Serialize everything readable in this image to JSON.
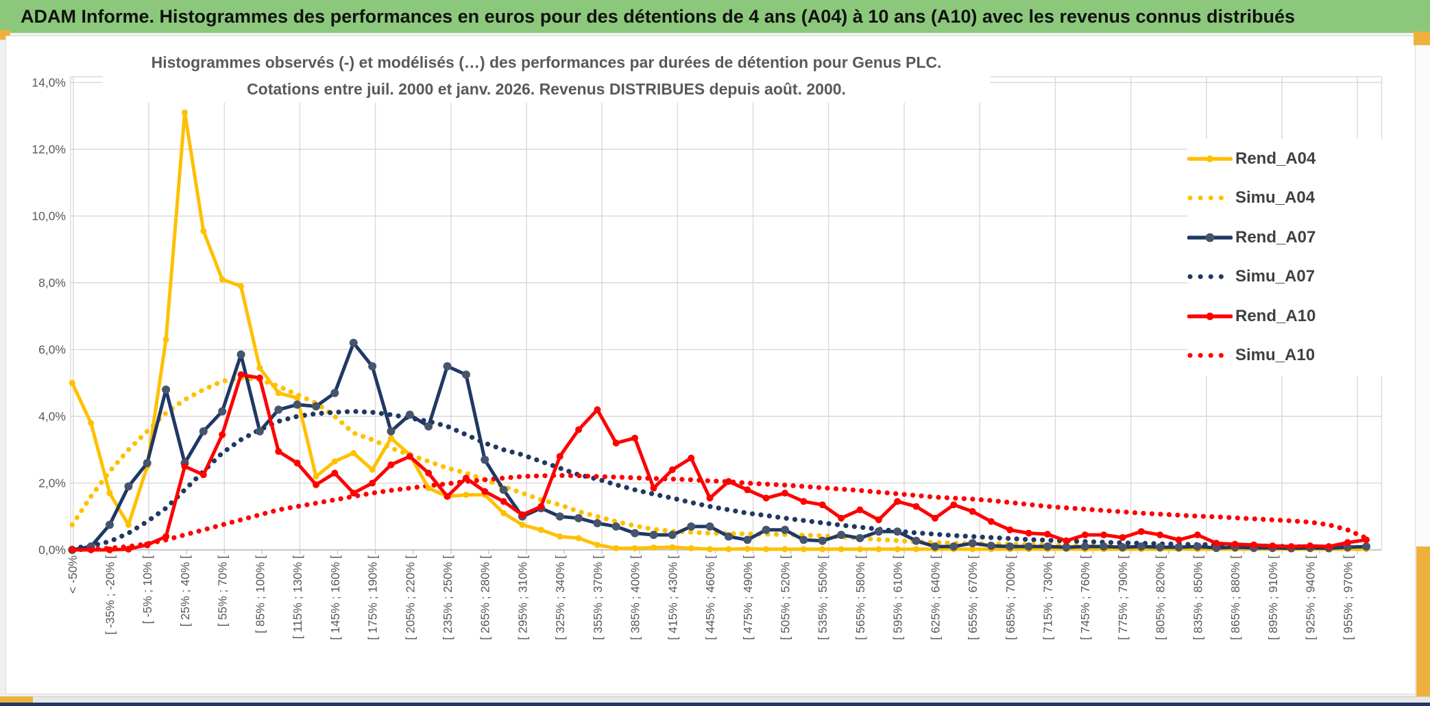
{
  "header": {
    "title": "ADAM Informe. Histogrammes des performances en euros pour des détentions de 4 ans (A04) à 10 ans (A10) avec les revenus connus distribués"
  },
  "colors": {
    "header_green": "#8bc87c",
    "frame_yellow": "#efb13d",
    "window_bar_navy": "#1f3864",
    "grid": "#d9d9d9",
    "axis_line": "#bfbfbf",
    "axis_text": "#595959",
    "legend_text": "#404040",
    "series_yellow": "#ffc000",
    "series_navy": "#203864",
    "series_navy_marker": "#47546e",
    "series_red": "#ff0000"
  },
  "chart_data": {
    "type": "line",
    "title_line1": "Histogrammes observés (-) et modélisés (…) des performances par durées de détention pour Genus PLC.",
    "title_line2": "Cotations entre juil. 2000 et janv. 2026. Revenus DISTRIBUES depuis août. 2000.",
    "ylabel": "",
    "xlabel": "",
    "ylim": [
      0,
      14
    ],
    "ytick_step_pct": 2,
    "grid": true,
    "legend_position": "right",
    "y_tick_labels": [
      "0,0%",
      "2,0%",
      "4,0%",
      "6,0%",
      "8,0%",
      "10,0%",
      "12,0%",
      "14,0%"
    ],
    "categories": [
      "< -50%",
      "[ -35% ; -20% [",
      "[ -5% ; 10% [",
      "[ 25% ; 40% [",
      "[ 55% ; 70% [",
      "[ 85% ; 100% [",
      "[ 115% ; 130% [",
      "[ 145% ; 160% [",
      "[ 175% ; 190% [",
      "[ 205% ; 220% [",
      "[ 235% ; 250% [",
      "[ 265% ; 280% [",
      "[ 295% ; 310% [",
      "[ 325% ; 340% [",
      "[ 355% ; 370% [",
      "[ 385% ; 400% [",
      "[ 415% ; 430% [",
      "[ 445% ; 460% [",
      "[ 475% ; 490% [",
      "[ 505% ; 520% [",
      "[ 535% ; 550% [",
      "[ 565% ; 580% [",
      "[ 595% ; 610% [",
      "[ 625% ; 640% [",
      "[ 655% ; 670% [",
      "[ 685% ; 700% [",
      "[ 715% ; 730% [",
      "[ 745% ; 760% [",
      "[ 775% ; 790% [",
      "[ 805% ; 820% [",
      "[ 835% ; 850% [",
      "[ 865% ; 880% [",
      "[ 895% ; 910% [",
      "[ 925% ; 940% [",
      "[ 955% ; 970% ["
    ],
    "bins_note": "70 bins of 15% width; axis labels shown on every other bin",
    "series": [
      {
        "name": "Rend_A04",
        "style": "solid",
        "color": "#ffc000",
        "marker_color": "#ffc000",
        "marker_r": 4.5,
        "values": [
          5.0,
          3.8,
          1.7,
          0.75,
          2.5,
          6.3,
          13.1,
          9.55,
          8.1,
          7.9,
          5.45,
          4.7,
          4.55,
          2.2,
          2.65,
          2.9,
          2.4,
          3.35,
          2.85,
          1.85,
          1.6,
          1.65,
          1.65,
          1.1,
          0.75,
          0.6,
          0.4,
          0.35,
          0.15,
          0.05,
          0.05,
          0.07,
          0.08,
          0.05,
          0.02,
          0.02,
          0.03,
          0.02,
          0.02,
          0.02,
          0.02,
          0.02,
          0.02,
          0.02,
          0.02,
          0.02,
          0.02,
          0.02,
          0.02,
          0.02,
          0.02,
          0.02,
          0.02,
          0.02,
          0.02,
          0.02,
          0.02,
          0.02,
          0.02,
          0.02,
          0.02,
          0.02,
          0.02,
          0.02,
          0.02,
          0.02,
          0.02,
          0.02,
          0.02,
          0.02
        ]
      },
      {
        "name": "Simu_A04",
        "style": "dotted",
        "color": "#ffc000",
        "values": [
          0.75,
          1.6,
          2.35,
          3.0,
          3.55,
          4.1,
          4.5,
          4.8,
          5.05,
          5.15,
          5.1,
          4.9,
          4.65,
          4.4,
          4.0,
          3.5,
          3.3,
          3.05,
          2.85,
          2.65,
          2.45,
          2.3,
          2.1,
          1.9,
          1.7,
          1.5,
          1.35,
          1.15,
          1.0,
          0.85,
          0.72,
          0.62,
          0.56,
          0.53,
          0.5,
          0.49,
          0.48,
          0.47,
          0.46,
          0.44,
          0.42,
          0.39,
          0.35,
          0.31,
          0.28,
          0.24,
          0.22,
          0.2,
          0.19,
          0.18,
          0.17,
          0.16,
          0.15,
          0.14,
          0.13,
          0.12,
          0.11,
          0.1,
          0.1,
          0.09,
          0.08,
          0.08,
          0.07,
          0.06,
          0.06,
          0.05,
          0.05,
          0.04,
          0.04,
          0.03
        ]
      },
      {
        "name": "Rend_A07",
        "style": "solid",
        "color": "#203864",
        "marker_color": "#47546e",
        "marker_r": 6,
        "values": [
          0.0,
          0.1,
          0.75,
          1.9,
          2.6,
          4.8,
          2.6,
          3.55,
          4.15,
          5.85,
          3.55,
          4.2,
          4.35,
          4.3,
          4.7,
          6.2,
          5.5,
          3.55,
          4.05,
          3.7,
          5.5,
          5.25,
          2.7,
          1.8,
          1.0,
          1.25,
          1.0,
          0.95,
          0.8,
          0.7,
          0.5,
          0.45,
          0.45,
          0.7,
          0.7,
          0.4,
          0.3,
          0.6,
          0.6,
          0.3,
          0.27,
          0.45,
          0.35,
          0.55,
          0.55,
          0.27,
          0.1,
          0.1,
          0.2,
          0.12,
          0.1,
          0.1,
          0.1,
          0.08,
          0.1,
          0.1,
          0.08,
          0.1,
          0.08,
          0.08,
          0.1,
          0.06,
          0.08,
          0.06,
          0.06,
          0.05,
          0.06,
          0.05,
          0.08,
          0.1
        ]
      },
      {
        "name": "Simu_A07",
        "style": "dotted",
        "color": "#203864",
        "values": [
          0.05,
          0.12,
          0.25,
          0.5,
          0.85,
          1.25,
          1.8,
          2.35,
          2.9,
          3.3,
          3.6,
          3.85,
          4.0,
          4.08,
          4.12,
          4.15,
          4.12,
          4.05,
          3.95,
          3.85,
          3.7,
          3.45,
          3.2,
          3.0,
          2.85,
          2.65,
          2.45,
          2.25,
          2.12,
          1.95,
          1.8,
          1.67,
          1.55,
          1.42,
          1.3,
          1.2,
          1.1,
          1.03,
          0.95,
          0.88,
          0.81,
          0.74,
          0.68,
          0.62,
          0.56,
          0.51,
          0.47,
          0.43,
          0.4,
          0.37,
          0.34,
          0.31,
          0.29,
          0.27,
          0.25,
          0.23,
          0.21,
          0.2,
          0.18,
          0.17,
          0.16,
          0.15,
          0.13,
          0.12,
          0.11,
          0.1,
          0.09,
          0.08,
          0.07,
          0.06
        ]
      },
      {
        "name": "Rend_A10",
        "style": "solid",
        "color": "#ff0000",
        "marker_color": "#ff0000",
        "marker_r": 5,
        "values": [
          0.0,
          0.0,
          0.0,
          0.02,
          0.15,
          0.4,
          2.5,
          2.25,
          3.45,
          5.25,
          5.15,
          2.95,
          2.6,
          1.95,
          2.3,
          1.7,
          2.0,
          2.55,
          2.8,
          2.3,
          1.6,
          2.15,
          1.75,
          1.45,
          1.05,
          1.3,
          2.8,
          3.6,
          4.2,
          3.2,
          3.35,
          1.85,
          2.4,
          2.75,
          1.55,
          2.05,
          1.8,
          1.55,
          1.7,
          1.45,
          1.35,
          0.95,
          1.2,
          0.9,
          1.45,
          1.3,
          0.95,
          1.35,
          1.15,
          0.85,
          0.6,
          0.5,
          0.47,
          0.27,
          0.45,
          0.45,
          0.37,
          0.55,
          0.45,
          0.3,
          0.45,
          0.2,
          0.17,
          0.15,
          0.12,
          0.1,
          0.12,
          0.1,
          0.22,
          0.3
        ]
      },
      {
        "name": "Simu_A10",
        "style": "dotted",
        "color": "#ff0000",
        "values": [
          0.0,
          0.02,
          0.05,
          0.1,
          0.18,
          0.3,
          0.45,
          0.6,
          0.75,
          0.9,
          1.05,
          1.2,
          1.3,
          1.4,
          1.5,
          1.6,
          1.7,
          1.78,
          1.85,
          1.92,
          1.98,
          2.05,
          2.1,
          2.15,
          2.2,
          2.22,
          2.23,
          2.22,
          2.2,
          2.18,
          2.16,
          2.14,
          2.12,
          2.1,
          2.07,
          2.04,
          2.0,
          1.97,
          1.94,
          1.9,
          1.86,
          1.82,
          1.78,
          1.73,
          1.68,
          1.63,
          1.58,
          1.55,
          1.52,
          1.48,
          1.42,
          1.36,
          1.3,
          1.26,
          1.22,
          1.18,
          1.14,
          1.1,
          1.07,
          1.04,
          1.01,
          0.99,
          0.96,
          0.93,
          0.9,
          0.87,
          0.83,
          0.75,
          0.6,
          0.35
        ]
      }
    ]
  }
}
